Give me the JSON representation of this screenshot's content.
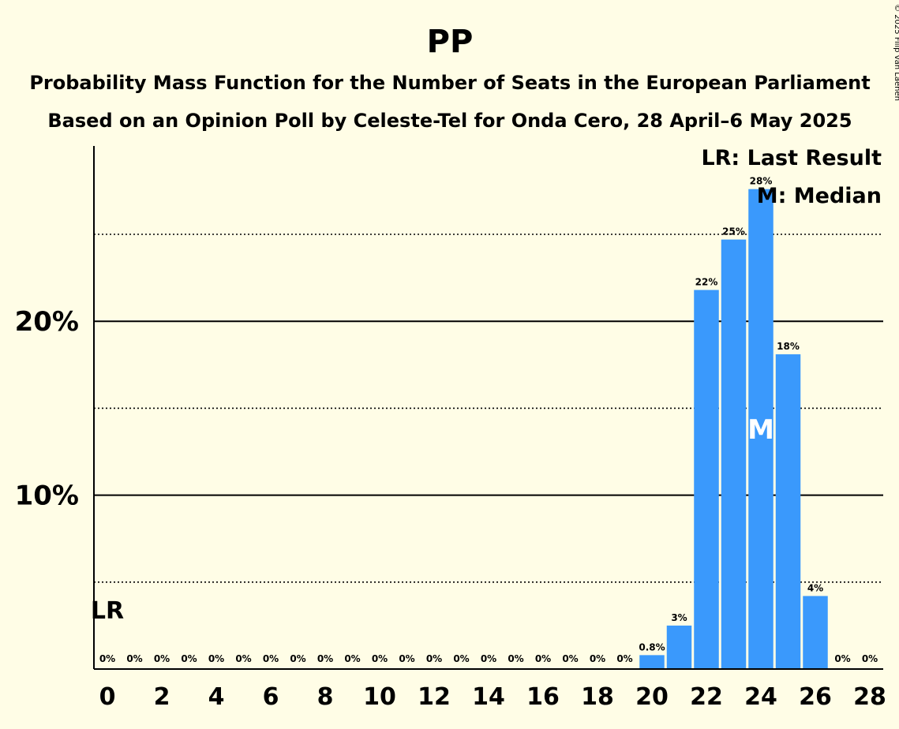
{
  "chart_data": {
    "type": "bar",
    "title": "PP",
    "subtitle": "Probability Mass Function for the Number of Seats in the European Parliament",
    "subtitle2": "Based on an Opinion Poll by Celeste-Tel for Onda Cero, 28 April–6 May 2025",
    "copyright": "© 2025 Filip van Laenen",
    "x": [
      0,
      1,
      2,
      3,
      4,
      5,
      6,
      7,
      8,
      9,
      10,
      11,
      12,
      13,
      14,
      15,
      16,
      17,
      18,
      19,
      20,
      21,
      22,
      23,
      24,
      25,
      26,
      27,
      28
    ],
    "values": [
      0,
      0,
      0,
      0,
      0,
      0,
      0,
      0,
      0,
      0,
      0,
      0,
      0,
      0,
      0,
      0,
      0,
      0,
      0,
      0,
      0.8,
      2.5,
      21.8,
      24.7,
      27.6,
      18.1,
      4.2,
      0,
      0
    ],
    "labels": [
      "0%",
      "0%",
      "0%",
      "0%",
      "0%",
      "0%",
      "0%",
      "0%",
      "0%",
      "0%",
      "0%",
      "0%",
      "0%",
      "0%",
      "0%",
      "0%",
      "0%",
      "0%",
      "0%",
      "0%",
      "0.8%",
      "3%",
      "22%",
      "25%",
      "28%",
      "18%",
      "4%",
      "0%",
      "0%"
    ],
    "xticks": [
      0,
      2,
      4,
      6,
      8,
      10,
      12,
      14,
      16,
      18,
      20,
      22,
      24,
      26,
      28
    ],
    "yticks": [
      {
        "value": 10,
        "label": "10%"
      },
      {
        "value": 20,
        "label": "20%"
      }
    ],
    "dotted_gridlines": [
      5,
      15,
      25
    ],
    "ylim": [
      0,
      30
    ],
    "last_result": {
      "x": 0,
      "label": "LR"
    },
    "median": {
      "x": 24,
      "label": "M"
    },
    "legend": [
      "LR: Last Result",
      "M: Median"
    ],
    "bar_color": "#3A99FC",
    "background": "#FFFDE6",
    "grid": true,
    "legend_position": "top-right"
  }
}
